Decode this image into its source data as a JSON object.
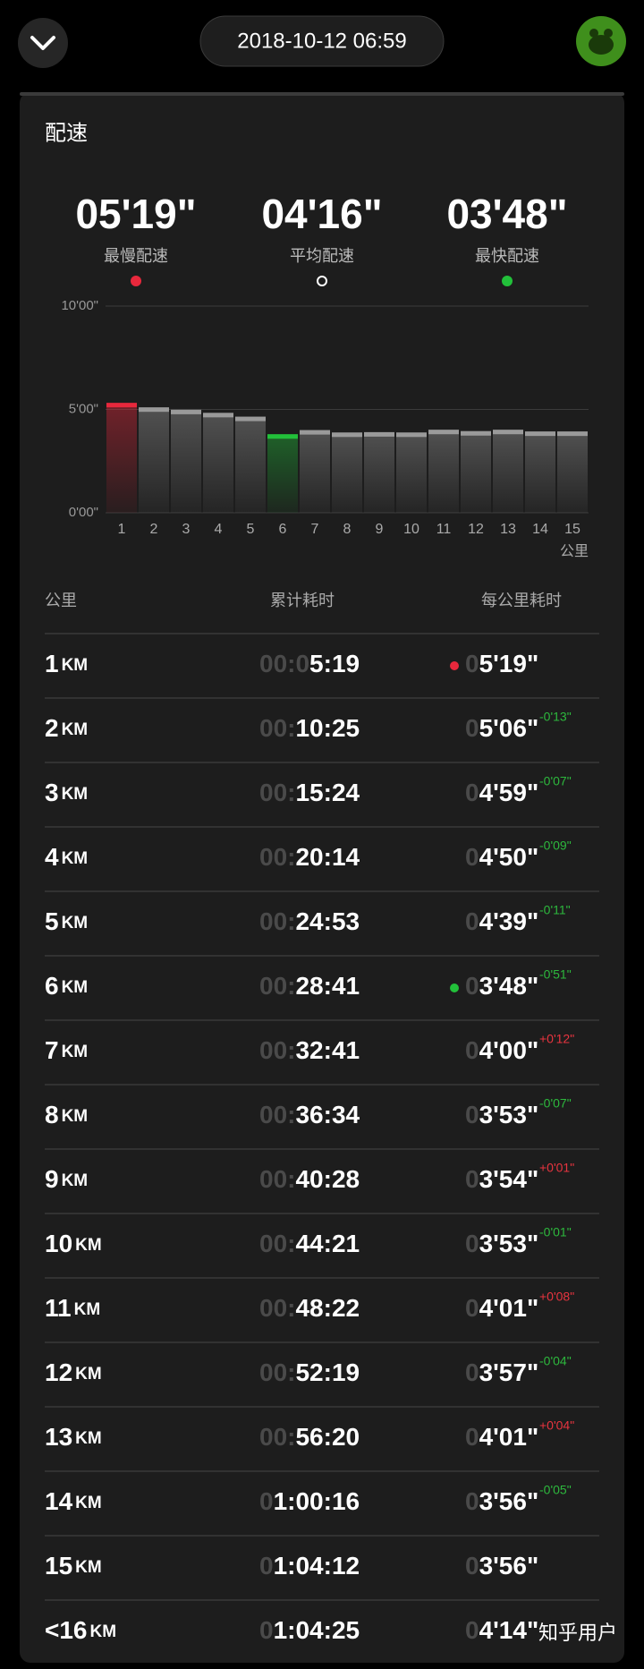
{
  "header": {
    "date": "2018-10-12 06:59"
  },
  "panel": {
    "title": "配速"
  },
  "summary": [
    {
      "value": "05'19\"",
      "label": "最慢配速",
      "dot_color": "#e8283c"
    },
    {
      "value": "04'16\"",
      "label": "平均配速",
      "dot_color": "#ffffff",
      "dot_hollow": true
    },
    {
      "value": "03'48\"",
      "label": "最快配速",
      "dot_color": "#22c03a"
    }
  ],
  "chart_data": {
    "type": "bar",
    "categories": [
      "1",
      "2",
      "3",
      "4",
      "5",
      "6",
      "7",
      "8",
      "9",
      "10",
      "11",
      "12",
      "13",
      "14",
      "15"
    ],
    "xlabel": "公里",
    "values": [
      319,
      306,
      299,
      290,
      279,
      228,
      240,
      233,
      234,
      233,
      241,
      237,
      241,
      236,
      236
    ],
    "colors": [
      "#e8283c",
      "#9a9a9a",
      "#9a9a9a",
      "#9a9a9a",
      "#9a9a9a",
      "#22c03a",
      "#9a9a9a",
      "#9a9a9a",
      "#9a9a9a",
      "#9a9a9a",
      "#9a9a9a",
      "#9a9a9a",
      "#9a9a9a",
      "#9a9a9a",
      "#9a9a9a"
    ],
    "ylim": [
      0,
      600
    ],
    "yticks": [
      {
        "value": 0,
        "label": "0'00\""
      },
      {
        "value": 300,
        "label": "5'00\""
      },
      {
        "value": 600,
        "label": "10'00\""
      }
    ],
    "grid": true
  },
  "table": {
    "columns": [
      "公里",
      "累计耗时",
      "每公里耗时"
    ],
    "rows": [
      {
        "km": "1",
        "unit": "KM",
        "elapsed_dim": "00:0",
        "elapsed": "5:19",
        "pace_dim": "0",
        "pace": "5'19\"",
        "dot_color": "#e8283c"
      },
      {
        "km": "2",
        "unit": "KM",
        "elapsed_dim": "00:",
        "elapsed": "10:25",
        "pace_dim": "0",
        "pace": "5'06\"",
        "diff": "-0'13\"",
        "diff_color": "#2db83d"
      },
      {
        "km": "3",
        "unit": "KM",
        "elapsed_dim": "00:",
        "elapsed": "15:24",
        "pace_dim": "0",
        "pace": "4'59\"",
        "diff": "-0'07\"",
        "diff_color": "#2db83d"
      },
      {
        "km": "4",
        "unit": "KM",
        "elapsed_dim": "00:",
        "elapsed": "20:14",
        "pace_dim": "0",
        "pace": "4'50\"",
        "diff": "-0'09\"",
        "diff_color": "#2db83d"
      },
      {
        "km": "5",
        "unit": "KM",
        "elapsed_dim": "00:",
        "elapsed": "24:53",
        "pace_dim": "0",
        "pace": "4'39\"",
        "diff": "-0'11\"",
        "diff_color": "#2db83d"
      },
      {
        "km": "6",
        "unit": "KM",
        "elapsed_dim": "00:",
        "elapsed": "28:41",
        "pace_dim": "0",
        "pace": "3'48\"",
        "diff": "-0'51\"",
        "diff_color": "#2db83d",
        "dot_color": "#22c03a"
      },
      {
        "km": "7",
        "unit": "KM",
        "elapsed_dim": "00:",
        "elapsed": "32:41",
        "pace_dim": "0",
        "pace": "4'00\"",
        "diff": "+0'12\"",
        "diff_color": "#e8343f"
      },
      {
        "km": "8",
        "unit": "KM",
        "elapsed_dim": "00:",
        "elapsed": "36:34",
        "pace_dim": "0",
        "pace": "3'53\"",
        "diff": "-0'07\"",
        "diff_color": "#2db83d"
      },
      {
        "km": "9",
        "unit": "KM",
        "elapsed_dim": "00:",
        "elapsed": "40:28",
        "pace_dim": "0",
        "pace": "3'54\"",
        "diff": "+0'01\"",
        "diff_color": "#e8343f"
      },
      {
        "km": "10",
        "unit": "KM",
        "elapsed_dim": "00:",
        "elapsed": "44:21",
        "pace_dim": "0",
        "pace": "3'53\"",
        "diff": "-0'01\"",
        "diff_color": "#2db83d"
      },
      {
        "km": "11",
        "unit": "KM",
        "elapsed_dim": "00:",
        "elapsed": "48:22",
        "pace_dim": "0",
        "pace": "4'01\"",
        "diff": "+0'08\"",
        "diff_color": "#e8343f"
      },
      {
        "km": "12",
        "unit": "KM",
        "elapsed_dim": "00:",
        "elapsed": "52:19",
        "pace_dim": "0",
        "pace": "3'57\"",
        "diff": "-0'04\"",
        "diff_color": "#2db83d"
      },
      {
        "km": "13",
        "unit": "KM",
        "elapsed_dim": "00:",
        "elapsed": "56:20",
        "pace_dim": "0",
        "pace": "4'01\"",
        "diff": "+0'04\"",
        "diff_color": "#e8343f"
      },
      {
        "km": "14",
        "unit": "KM",
        "elapsed_dim": "0",
        "elapsed": "1:00:16",
        "pace_dim": "0",
        "pace": "3'56\"",
        "diff": "-0'05\"",
        "diff_color": "#2db83d"
      },
      {
        "km": "15",
        "unit": "KM",
        "elapsed_dim": "0",
        "elapsed": "1:04:12",
        "pace_dim": "0",
        "pace": "3'56\""
      },
      {
        "km": "<16",
        "unit": "KM",
        "elapsed_dim": "0",
        "elapsed": "1:04:25",
        "pace_dim": "0",
        "pace": "4'14\""
      }
    ]
  },
  "watermark": "知乎用户"
}
